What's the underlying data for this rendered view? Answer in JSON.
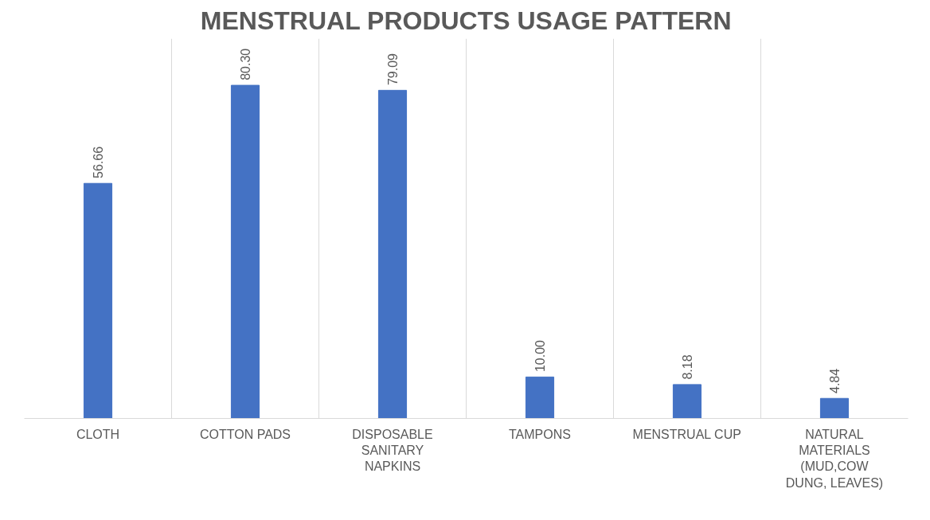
{
  "chart_data": {
    "type": "bar",
    "title": "MENSTRUAL PRODUCTS USAGE PATTERN",
    "categories": [
      "CLOTH",
      "COTTON PADS",
      "DISPOSABLE SANITARY NAPKINS",
      "TAMPONS",
      "MENSTRUAL CUP",
      "NATURAL MATERIALS (MUD,COW DUNG, LEAVES)"
    ],
    "values": [
      56.66,
      80.3,
      79.09,
      10.0,
      8.18,
      4.84
    ],
    "value_labels": [
      "56.66",
      "80.30",
      "79.09",
      "10.00",
      "8.18",
      "4.84"
    ],
    "color": "#4472c4",
    "grid": "x"
  }
}
